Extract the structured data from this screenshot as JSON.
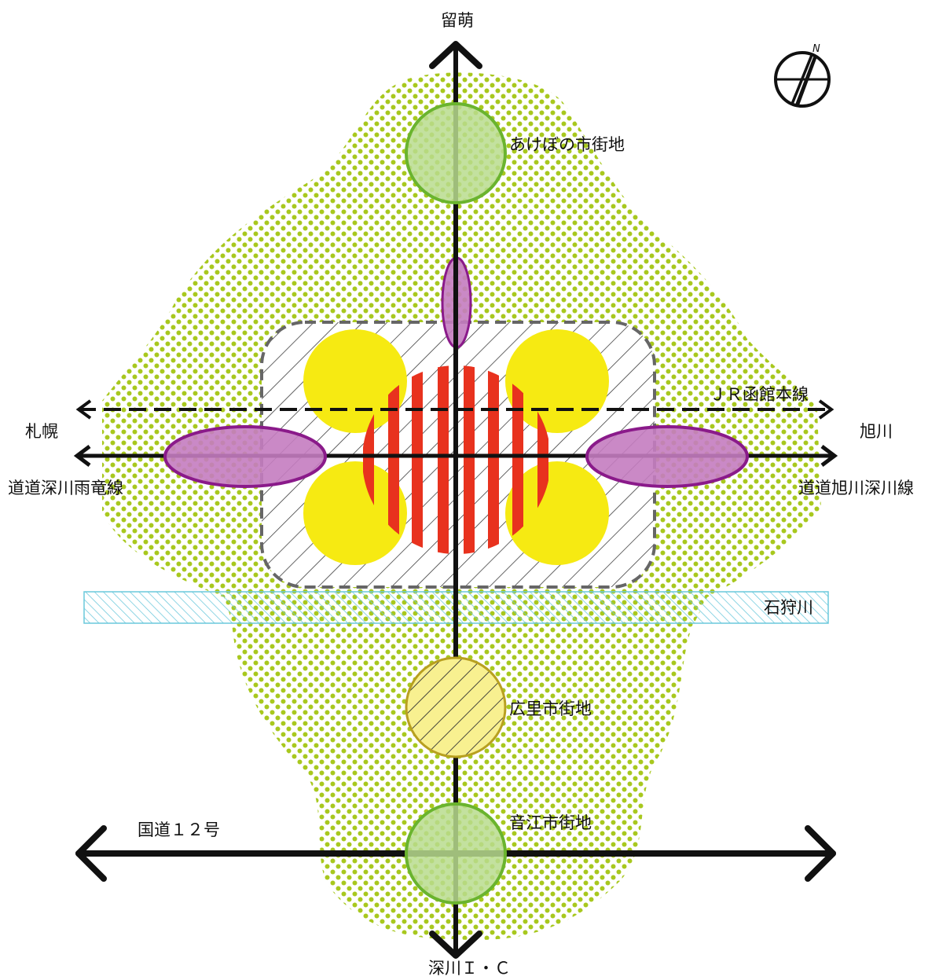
{
  "labels": {
    "north_dest": "留萌",
    "south_dest": "深川Ｉ・Ｃ",
    "west_dest": "札幌",
    "east_dest": "旭川",
    "west_road": "道道深川雨竜線",
    "east_road": "道道旭川深川線",
    "rail_line": "ＪＲ函館本線",
    "river": "石狩川",
    "national_road": "国道１２号",
    "akebono": "あけぼの市街地",
    "hirosato": "広里市街地",
    "otoe": "音江市街地",
    "compass_n": "N"
  },
  "colors": {
    "area_dots": "#a8c81e",
    "yellow_zone": "#f6ea12",
    "center_stripes": "#e8321e",
    "purple_fill": "#c47cc0",
    "purple_stroke": "#8a1a8a",
    "green_fill": "#b8dc8e",
    "green_stroke": "#6ab42e",
    "river_stroke": "#6ac8dc",
    "hirosato_fill": "#f8f090",
    "dashed_border": "#666666"
  }
}
